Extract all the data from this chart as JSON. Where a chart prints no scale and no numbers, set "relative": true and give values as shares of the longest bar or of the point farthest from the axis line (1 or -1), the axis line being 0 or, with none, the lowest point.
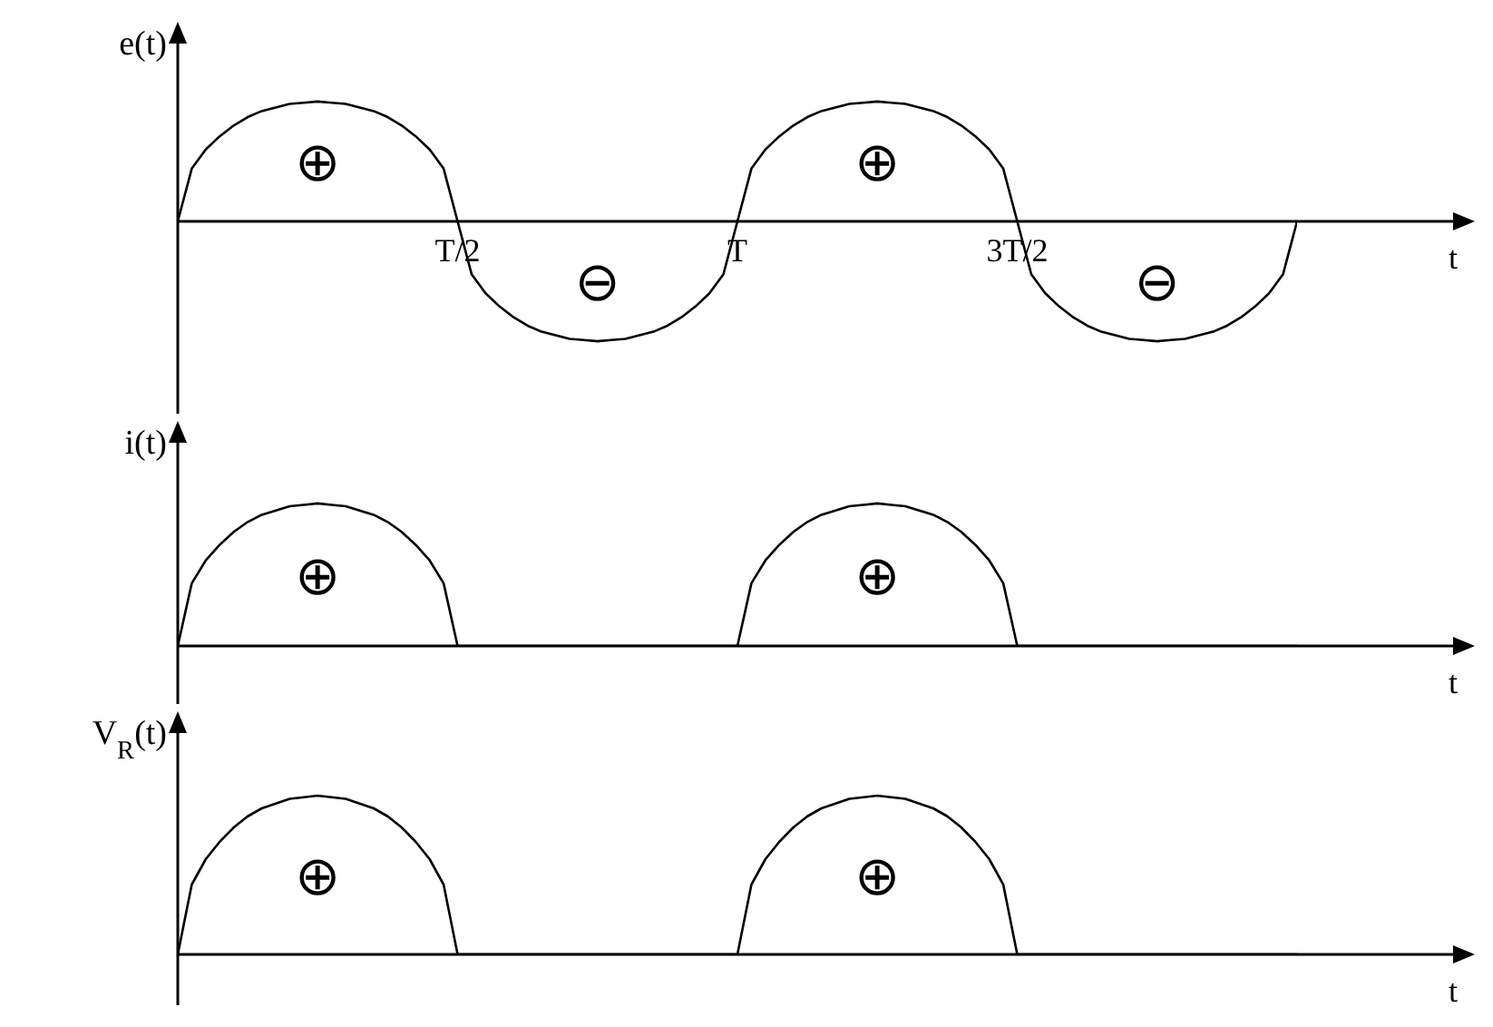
{
  "chart_data": [
    {
      "type": "line",
      "relative": true,
      "ylabel": "e(t)",
      "xlabel": "t",
      "categories": [
        null,
        null,
        null,
        null,
        null,
        null,
        null,
        null,
        null,
        null,
        null,
        null,
        null,
        null,
        null,
        null,
        null,
        null,
        null,
        null,
        "T/2",
        null,
        null,
        null,
        null,
        null,
        null,
        null,
        null,
        null,
        null,
        null,
        null,
        null,
        null,
        null,
        null,
        null,
        null,
        null,
        "T",
        null,
        null,
        null,
        null,
        null,
        null,
        null,
        null,
        null,
        null,
        null,
        null,
        null,
        null,
        null,
        null,
        null,
        null,
        null,
        "3T/2",
        null,
        null,
        null,
        null,
        null,
        null,
        null,
        null,
        null,
        null,
        null,
        null,
        null,
        null,
        null,
        null,
        null,
        null,
        null,
        null
      ],
      "series": [
        {
          "color": "#000000",
          "values": [
            0,
            0.44,
            0.6,
            0.71,
            0.8,
            0.87,
            0.92,
            0.95,
            0.98,
            0.99,
            1,
            0.99,
            0.98,
            0.95,
            0.92,
            0.87,
            0.8,
            0.71,
            0.6,
            0.44,
            0,
            -0.44,
            -0.6,
            -0.71,
            -0.8,
            -0.87,
            -0.92,
            -0.95,
            -0.98,
            -0.99,
            -1,
            -0.99,
            -0.98,
            -0.95,
            -0.92,
            -0.87,
            -0.8,
            -0.71,
            -0.6,
            -0.44,
            0,
            0.44,
            0.6,
            0.71,
            0.8,
            0.87,
            0.92,
            0.95,
            0.98,
            0.99,
            1,
            0.99,
            0.98,
            0.95,
            0.92,
            0.87,
            0.8,
            0.71,
            0.6,
            0.44,
            0,
            -0.44,
            -0.6,
            -0.71,
            -0.8,
            -0.87,
            -0.92,
            -0.95,
            -0.98,
            -0.99,
            -1,
            -0.99,
            -0.98,
            -0.95,
            -0.92,
            -0.87,
            -0.8,
            -0.71,
            -0.6,
            -0.44,
            0
          ]
        }
      ],
      "annotations": [
        "⊕",
        "⊖",
        "⊕",
        "⊖"
      ]
    },
    {
      "type": "line",
      "relative": true,
      "ylabel": "i(t)",
      "xlabel": "t",
      "categories": [
        null,
        null,
        null,
        null,
        null,
        null,
        null,
        null,
        null,
        null,
        null,
        null,
        null,
        null,
        null,
        null,
        null,
        null,
        null,
        null,
        null,
        null,
        null,
        null,
        null,
        null,
        null,
        null,
        null,
        null,
        null,
        null,
        null,
        null,
        null,
        null,
        null,
        null,
        null,
        null,
        null,
        null,
        null,
        null,
        null,
        null,
        null,
        null,
        null,
        null,
        null,
        null,
        null,
        null,
        null,
        null,
        null,
        null,
        null,
        null,
        null,
        null,
        null,
        null,
        null,
        null,
        null,
        null,
        null,
        null,
        null,
        null,
        null,
        null,
        null,
        null,
        null,
        null,
        null,
        null,
        null
      ],
      "series": [
        {
          "color": "#000000",
          "values": [
            0,
            0.44,
            0.6,
            0.71,
            0.8,
            0.87,
            0.92,
            0.95,
            0.98,
            0.99,
            1,
            0.99,
            0.98,
            0.95,
            0.92,
            0.87,
            0.8,
            0.71,
            0.6,
            0.44,
            0,
            0,
            0,
            0,
            0,
            0,
            0,
            0,
            0,
            0,
            0,
            0,
            0,
            0,
            0,
            0,
            0,
            0,
            0,
            0,
            0,
            0.44,
            0.6,
            0.71,
            0.8,
            0.87,
            0.92,
            0.95,
            0.98,
            0.99,
            1,
            0.99,
            0.98,
            0.95,
            0.92,
            0.87,
            0.8,
            0.71,
            0.6,
            0.44,
            0,
            0,
            0,
            0,
            0,
            0,
            0,
            0,
            0,
            0,
            0,
            0,
            0,
            0,
            0,
            0,
            0,
            0,
            0,
            0,
            0
          ]
        }
      ],
      "annotations": [
        "⊕",
        "⊕"
      ]
    },
    {
      "type": "line",
      "relative": true,
      "ylabel": "V$_{R}$(t)",
      "xlabel": "t",
      "categories": [
        null,
        null,
        null,
        null,
        null,
        null,
        null,
        null,
        null,
        null,
        null,
        null,
        null,
        null,
        null,
        null,
        null,
        null,
        null,
        null,
        null,
        null,
        null,
        null,
        null,
        null,
        null,
        null,
        null,
        null,
        null,
        null,
        null,
        null,
        null,
        null,
        null,
        null,
        null,
        null,
        null,
        null,
        null,
        null,
        null,
        null,
        null,
        null,
        null,
        null,
        null,
        null,
        null,
        null,
        null,
        null,
        null,
        null,
        null,
        null,
        null,
        null,
        null,
        null,
        null,
        null,
        null,
        null,
        null,
        null,
        null,
        null,
        null,
        null,
        null,
        null,
        null,
        null,
        null,
        null,
        null
      ],
      "series": [
        {
          "color": "#000000",
          "values": [
            0,
            0.44,
            0.6,
            0.71,
            0.8,
            0.87,
            0.92,
            0.95,
            0.98,
            0.99,
            1,
            0.99,
            0.98,
            0.95,
            0.92,
            0.87,
            0.8,
            0.71,
            0.6,
            0.44,
            0,
            0,
            0,
            0,
            0,
            0,
            0,
            0,
            0,
            0,
            0,
            0,
            0,
            0,
            0,
            0,
            0,
            0,
            0,
            0,
            0,
            0.44,
            0.6,
            0.71,
            0.8,
            0.87,
            0.92,
            0.95,
            0.98,
            0.99,
            1,
            0.99,
            0.98,
            0.95,
            0.92,
            0.87,
            0.8,
            0.71,
            0.6,
            0.44,
            0,
            0,
            0,
            0,
            0,
            0,
            0,
            0,
            0,
            0,
            0,
            0,
            0,
            0,
            0,
            0,
            0,
            0,
            0,
            0,
            0
          ]
        }
      ],
      "annotations": [
        "⊕",
        "⊕"
      ]
    }
  ]
}
